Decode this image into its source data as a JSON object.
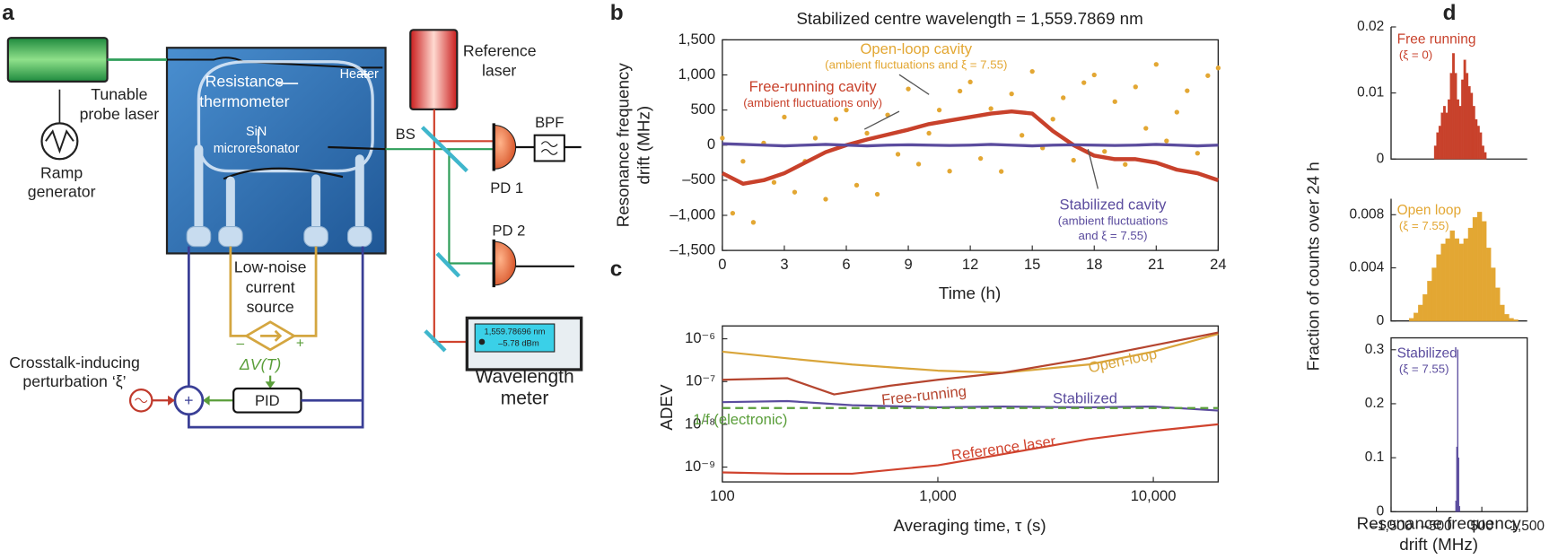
{
  "panel_labels": [
    "a",
    "b",
    "c",
    "d"
  ],
  "diagram": {
    "tunable_probe_laser": [
      "Tunable",
      "probe laser"
    ],
    "ramp_generator": [
      "Ramp",
      "generator"
    ],
    "resistance_thermometer": [
      "Resistance",
      "thermometer"
    ],
    "heater": "Heater",
    "microresonator": [
      "SiN",
      "microresonator"
    ],
    "reference_laser": [
      "Reference",
      "laser"
    ],
    "bs": "BS",
    "bpf": "BPF",
    "pd1": "PD 1",
    "pd2": "PD 2",
    "current_source": [
      "Low-noise",
      "current",
      "source"
    ],
    "delta_v": "ΔV(T)",
    "minus": "–",
    "plus": "+",
    "pid": "PID",
    "crosstalk": [
      "Crosstalk-inducing",
      "perturbation ‘ξ’"
    ],
    "meter_display": [
      "1,559.78696 nm",
      "–5.78 dBm"
    ],
    "wavelength_meter": [
      "Wavelength",
      "meter"
    ]
  },
  "chart_data": [
    {
      "type": "line",
      "title": "Stabilized centre wavelength = 1,559.7869 nm",
      "x_label": "Time (h)",
      "y_label": [
        "Resonance frequency",
        "drift (MHz)"
      ],
      "xlim": [
        0,
        24
      ],
      "ylim": [
        -1500,
        1500
      ],
      "xticks": [
        0,
        3,
        6,
        9,
        12,
        15,
        18,
        21,
        24
      ],
      "yticks": [
        {
          "value": -1500,
          "label": "–1,500"
        },
        {
          "value": -1000,
          "label": "–1,000"
        },
        {
          "value": -500,
          "label": "–500"
        },
        0,
        500,
        {
          "value": 1000,
          "label": "1,000"
        },
        {
          "value": 1500,
          "label": "1,500"
        }
      ],
      "series": [
        {
          "name": "Open-loop cavity",
          "note": [
            "(ambient fluctuations and ξ = 7.55)"
          ],
          "type": "scatter",
          "color": "#e3a733",
          "x": [
            0,
            0.5,
            1,
            1.5,
            2,
            2.5,
            3,
            3.5,
            4,
            4.5,
            5,
            5.5,
            6,
            6.5,
            7,
            7.5,
            8,
            8.5,
            9,
            9.5,
            10,
            10.5,
            11,
            11.5,
            12,
            12.5,
            13,
            13.5,
            14,
            14.5,
            15,
            15.5,
            16,
            16.5,
            17,
            17.5,
            18,
            18.5,
            19,
            19.5,
            20,
            20.5,
            21,
            21.5,
            22,
            22.5,
            23,
            23.5,
            24
          ],
          "values": [
            100,
            -970,
            -230,
            -1100,
            30,
            -530,
            400,
            -670,
            -230,
            100,
            -770,
            370,
            500,
            -570,
            170,
            -700,
            430,
            -130,
            800,
            -270,
            170,
            500,
            -370,
            770,
            900,
            -190,
            520,
            -375,
            730,
            140,
            1050,
            -40,
            370,
            675,
            -215,
            890,
            1000,
            -90,
            620,
            -275,
            830,
            240,
            1150,
            60,
            470,
            775,
            -115,
            990,
            1100
          ]
        },
        {
          "name": "Free-running cavity",
          "note": [
            "(ambient fluctuations only)"
          ],
          "type": "line",
          "color": "#c8412b",
          "x": [
            0,
            1,
            2,
            3,
            4,
            5,
            6,
            7,
            8,
            9,
            10,
            11,
            12,
            13,
            14,
            15,
            16,
            17,
            18,
            19,
            20,
            21,
            22,
            23,
            24
          ],
          "values": [
            -400,
            -550,
            -500,
            -400,
            -250,
            -100,
            0,
            80,
            150,
            220,
            300,
            350,
            400,
            450,
            480,
            450,
            200,
            0,
            -150,
            -200,
            -200,
            -250,
            -350,
            -400,
            -500
          ]
        },
        {
          "name": "Stabilized cavity",
          "note": [
            "(ambient fluctuations",
            "and ξ = 7.55)"
          ],
          "type": "line",
          "color": "#5b4c9e",
          "x": [
            0,
            1,
            2,
            3,
            4,
            5,
            6,
            7,
            8,
            9,
            10,
            11,
            12,
            13,
            14,
            15,
            16,
            17,
            18,
            19,
            20,
            21,
            22,
            23,
            24
          ],
          "values": [
            20,
            10,
            0,
            -10,
            0,
            10,
            0,
            -10,
            0,
            5,
            0,
            -5,
            0,
            10,
            0,
            -10,
            0,
            5,
            0,
            -5,
            0,
            10,
            0,
            -10,
            0
          ]
        }
      ]
    },
    {
      "type": "line",
      "log_x": true,
      "log_y": true,
      "x_label": "Averaging time, τ (s)",
      "y_label": [
        "ADEV"
      ],
      "xlim": [
        100,
        20000
      ],
      "ylim": [
        4.5e-10,
        2e-06
      ],
      "xticks": [
        100,
        {
          "value": 1000,
          "label": "1,000"
        },
        {
          "value": 10000,
          "label": "10,000"
        }
      ],
      "yticks": [
        {
          "value": 1e-09,
          "label": "10⁻⁹"
        },
        {
          "value": 1e-08,
          "label": "10⁻⁸"
        },
        {
          "value": 1e-07,
          "label": "10⁻⁷"
        },
        {
          "value": 1e-06,
          "label": "10⁻⁶"
        }
      ],
      "series": [
        {
          "name": "Open-loop",
          "type": "line",
          "color": "#d9a53a",
          "x": [
            100,
            200,
            400,
            1000,
            2000,
            5000,
            10000,
            20000
          ],
          "values": [
            5e-07,
            3.5e-07,
            2.5e-07,
            1.8e-07,
            1.6e-07,
            2.5e-07,
            5e-07,
            1.3e-06
          ]
        },
        {
          "name": "Free-running",
          "type": "line",
          "color": "#b5452f",
          "x": [
            100,
            200,
            330,
            600,
            1000,
            2000,
            5000,
            10000,
            20000
          ],
          "values": [
            1.1e-07,
            1.2e-07,
            5e-08,
            8e-08,
            1.1e-07,
            1.6e-07,
            3.5e-07,
            7e-07,
            1.4e-06
          ]
        },
        {
          "name": "Stabilized",
          "type": "line",
          "color": "#5b4c9e",
          "x": [
            100,
            200,
            400,
            1000,
            2000,
            5000,
            10000,
            20000
          ],
          "values": [
            3.3e-08,
            3.5e-08,
            2.8e-08,
            2.5e-08,
            2.6e-08,
            2.5e-08,
            2.6e-08,
            2.1e-08
          ]
        },
        {
          "name": "1/f (electronic)",
          "type": "line",
          "dashed": true,
          "color": "#5a9e3a",
          "x": [
            100,
            20000
          ],
          "values": [
            2.4e-08,
            2.4e-08
          ]
        },
        {
          "name": "Reference laser",
          "type": "line",
          "color": "#d0432e",
          "x": [
            100,
            200,
            400,
            1000,
            2000,
            5000,
            10000,
            20000
          ],
          "values": [
            7.5e-10,
            7e-10,
            7e-10,
            1.1e-09,
            2e-09,
            4.5e-09,
            7e-09,
            1e-08
          ]
        }
      ]
    },
    {
      "type": "histogram",
      "label": "Free running",
      "note": "(ξ = 0)",
      "color": "#c8412b",
      "xlim": [
        -1500,
        1500
      ],
      "ylim": [
        0,
        0.02
      ],
      "yticks": [
        0,
        0.01,
        0.02
      ],
      "bins": [
        -600,
        -550,
        -500,
        -450,
        -400,
        -350,
        -300,
        -250,
        -200,
        -150,
        -100,
        -50,
        0,
        50,
        100,
        150,
        200,
        250,
        300,
        350,
        400,
        450,
        500,
        550,
        600
      ],
      "values": [
        0,
        0.002,
        0.004,
        0.005,
        0.007,
        0.008,
        0.007,
        0.009,
        0.013,
        0.016,
        0.013,
        0.009,
        0.008,
        0.012,
        0.015,
        0.013,
        0.011,
        0.01,
        0.008,
        0.006,
        0.005,
        0.004,
        0.002,
        0.001
      ]
    },
    {
      "type": "histogram",
      "label": "Open loop",
      "note": "(ξ = 7.55)",
      "color": "#e3a733",
      "y_label": "Fraction of counts over 24 h",
      "xlim": [
        -1500,
        1500
      ],
      "ylim": [
        0,
        0.0092
      ],
      "yticks": [
        0,
        0.004,
        0.008
      ],
      "bins": [
        -1100,
        -1000,
        -900,
        -800,
        -700,
        -600,
        -500,
        -400,
        -300,
        -200,
        -100,
        0,
        100,
        200,
        300,
        400,
        500,
        600,
        700,
        800,
        900,
        1000,
        1100,
        1200,
        1300
      ],
      "values": [
        0.0002,
        0.0006,
        0.0012,
        0.002,
        0.003,
        0.004,
        0.005,
        0.0058,
        0.0062,
        0.0068,
        0.0062,
        0.0058,
        0.0062,
        0.007,
        0.0078,
        0.0082,
        0.0075,
        0.0055,
        0.004,
        0.0025,
        0.0012,
        0.0005,
        0.0002,
        0.0001
      ]
    },
    {
      "type": "histogram",
      "label": "Stabilized",
      "note": "(ξ = 7.55)",
      "color": "#5b4c9e",
      "x_label": [
        "Resonance frequency",
        "drift (MHz)"
      ],
      "xlim": [
        -1500,
        1500
      ],
      "ylim": [
        0,
        0.322
      ],
      "yticks": [
        0,
        0.1,
        0.2,
        0.3
      ],
      "xticks": [
        {
          "value": -1500,
          "label": "–1,500"
        },
        {
          "value": -500,
          "label": "–500"
        },
        500,
        {
          "value": 1500,
          "label": "1,500"
        }
      ],
      "bins": [
        -80,
        -60,
        -40,
        -20,
        0,
        20
      ],
      "values": [
        0.02,
        0.12,
        0.3,
        0.1,
        0.01
      ]
    }
  ]
}
